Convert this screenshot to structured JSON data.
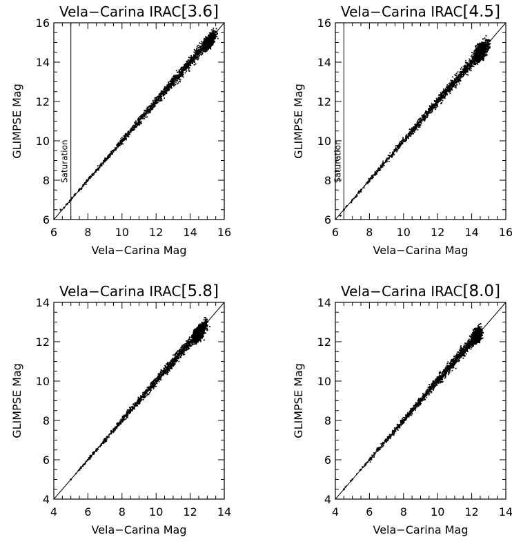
{
  "chart_data": [
    {
      "type": "scatter",
      "title_main": "Vela−Carina IRAC",
      "title_band": "[3.6]",
      "xlabel": "Vela−Carina Mag",
      "ylabel": "GLIMPSE Mag",
      "xlim": [
        6,
        16
      ],
      "ylim": [
        6,
        16
      ],
      "ticks": [
        6,
        8,
        10,
        12,
        14,
        16
      ],
      "tick_labels": [
        "6",
        "8",
        "10",
        "12",
        "14",
        "16"
      ],
      "identity_line": true,
      "saturation": {
        "x": 7.0,
        "label": "Saturation"
      },
      "series": [
        {
          "x": [
            6.4,
            6.6,
            6.8,
            7.0,
            7.5,
            8.0,
            8.5,
            9.0,
            9.5,
            10.0,
            10.5,
            11.0,
            11.5,
            12.0,
            12.5,
            13.0,
            13.5,
            14.0,
            14.5,
            15.0,
            15.5
          ],
          "y": [
            6.5,
            6.6,
            6.8,
            7.0,
            7.5,
            8.0,
            8.5,
            9.0,
            9.5,
            10.0,
            10.5,
            11.0,
            11.5,
            12.0,
            12.5,
            13.0,
            13.5,
            14.0,
            14.5,
            15.0,
            15.4
          ]
        }
      ],
      "dense_core": {
        "x": 15.1,
        "y": 15.0,
        "size": 0.5
      }
    },
    {
      "type": "scatter",
      "title_main": "Vela−Carina IRAC",
      "title_band": "[4.5]",
      "xlabel": "Vela−Carina Mag",
      "ylabel": "GLIMPSE Mag",
      "xlim": [
        6,
        16
      ],
      "ylim": [
        6,
        16
      ],
      "ticks": [
        6,
        8,
        10,
        12,
        14,
        16
      ],
      "tick_labels": [
        "6",
        "8",
        "10",
        "12",
        "14",
        "16"
      ],
      "identity_line": true,
      "saturation": {
        "x": 6.5,
        "label": "Saturation"
      },
      "series": [
        {
          "x": [
            6.3,
            6.5,
            7.0,
            7.5,
            8.0,
            8.5,
            9.0,
            9.5,
            10.0,
            10.5,
            11.0,
            11.5,
            12.0,
            12.5,
            13.0,
            13.5,
            14.0,
            14.5,
            15.0
          ],
          "y": [
            6.2,
            6.5,
            7.0,
            7.5,
            8.0,
            8.5,
            9.0,
            9.5,
            10.0,
            10.5,
            11.0,
            11.5,
            12.0,
            12.5,
            13.0,
            13.5,
            14.0,
            14.5,
            14.7
          ]
        }
      ],
      "dense_core": {
        "x": 14.5,
        "y": 14.5,
        "size": 0.7
      }
    },
    {
      "type": "scatter",
      "title_main": "Vela−Carina IRAC",
      "title_band": "[5.8]",
      "xlabel": "Vela−Carina Mag",
      "ylabel": "GLIMPSE Mag",
      "xlim": [
        4,
        14
      ],
      "ylim": [
        4,
        14
      ],
      "ticks": [
        4,
        6,
        8,
        10,
        12,
        14
      ],
      "tick_labels": [
        "4",
        "6",
        "8",
        "10",
        "12",
        "14"
      ],
      "identity_line": true,
      "series": [
        {
          "x": [
            5.0,
            5.5,
            6.0,
            6.5,
            7.0,
            7.5,
            8.0,
            8.5,
            9.0,
            9.5,
            10.0,
            10.5,
            11.0,
            11.5,
            12.0,
            12.5,
            13.0
          ],
          "y": [
            5.0,
            5.5,
            6.0,
            6.5,
            7.0,
            7.5,
            8.0,
            8.5,
            9.0,
            9.5,
            10.0,
            10.5,
            11.0,
            11.5,
            12.0,
            12.4,
            12.6
          ]
        }
      ],
      "dense_core": {
        "x": 12.5,
        "y": 12.4,
        "size": 0.6
      }
    },
    {
      "type": "scatter",
      "title_main": "Vela−Carina IRAC",
      "title_band": "[8.0]",
      "xlabel": "Vela−Carina Mag",
      "ylabel": "GLIMPSE Mag",
      "xlim": [
        4,
        14
      ],
      "ylim": [
        4,
        14
      ],
      "ticks": [
        4,
        6,
        8,
        10,
        12,
        14
      ],
      "tick_labels": [
        "4",
        "6",
        "8",
        "10",
        "12",
        "14"
      ],
      "identity_line": true,
      "series": [
        {
          "x": [
            4.5,
            5.0,
            5.5,
            6.0,
            6.5,
            7.0,
            7.5,
            8.0,
            8.5,
            9.0,
            9.5,
            10.0,
            10.5,
            11.0,
            11.5,
            12.0,
            12.5
          ],
          "y": [
            4.5,
            5.0,
            5.5,
            6.0,
            6.5,
            7.0,
            7.5,
            8.0,
            8.5,
            9.0,
            9.5,
            10.0,
            10.5,
            11.0,
            11.5,
            12.0,
            12.3
          ]
        }
      ],
      "dense_core": {
        "x": 12.3,
        "y": 12.3,
        "size": 0.6
      }
    }
  ]
}
